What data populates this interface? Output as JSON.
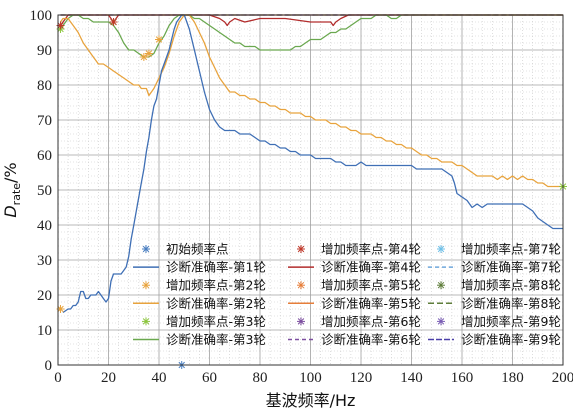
{
  "chart_data": {
    "type": "line",
    "title": "",
    "xlabel": "基波频率/Hz",
    "ylabel": {
      "main": "D",
      "sub": "rate",
      "unit": "/%"
    },
    "xlim": [
      0,
      200
    ],
    "ylim": [
      0,
      100
    ],
    "xticks": [
      "0",
      "20",
      "40",
      "60",
      "80",
      "100",
      "120",
      "140",
      "160",
      "180",
      "200"
    ],
    "yticks": [
      "0",
      "10",
      "20",
      "30",
      "40",
      "50",
      "60",
      "70",
      "80",
      "90",
      "100"
    ],
    "grid": true,
    "legend_position": "lower-right",
    "series": [
      {
        "name": "初始频率点",
        "kind": "marker",
        "color": "#4a7fc1",
        "x": [
          49
        ],
        "y": [
          0
        ]
      },
      {
        "name": "诊断准确率-第1轮",
        "kind": "line",
        "color": "#3f6fb5",
        "dash": "",
        "x": [
          2,
          4,
          5,
          6,
          7,
          8,
          9,
          10,
          11,
          12,
          13,
          14,
          15,
          16,
          17,
          18,
          19,
          20,
          21,
          22,
          23,
          24,
          25,
          26,
          27,
          28,
          29,
          30,
          31,
          32,
          33,
          34,
          35,
          36,
          37,
          38,
          39,
          40,
          41,
          42,
          43,
          44,
          45,
          46,
          47,
          48,
          49,
          50,
          52,
          54,
          56,
          58,
          60,
          62,
          64,
          66,
          68,
          70,
          72,
          74,
          76,
          78,
          80,
          82,
          84,
          86,
          88,
          90,
          92,
          94,
          96,
          98,
          100,
          102,
          104,
          106,
          108,
          110,
          112,
          114,
          116,
          118,
          120,
          122,
          124,
          126,
          128,
          130,
          132,
          134,
          136,
          138,
          140,
          142,
          144,
          146,
          148,
          150,
          152,
          154,
          156,
          157,
          158,
          160,
          162,
          164,
          166,
          168,
          170,
          172,
          174,
          176,
          178,
          180,
          182,
          184,
          186,
          188,
          190,
          192,
          194,
          196,
          198,
          200
        ],
        "y": [
          15,
          16,
          16,
          17,
          17,
          18,
          21,
          21,
          19,
          19,
          20,
          20,
          20,
          21,
          20,
          19,
          18,
          19,
          24,
          26,
          26,
          26,
          26,
          27,
          28,
          31,
          36,
          40,
          44,
          48,
          52,
          56,
          61,
          65,
          70,
          74,
          76,
          80,
          84,
          86,
          88,
          90,
          93,
          96,
          98,
          99,
          100,
          100,
          96,
          90,
          84,
          78,
          73,
          70,
          68,
          67,
          67,
          67,
          66,
          66,
          66,
          65,
          64,
          64,
          63,
          63,
          62,
          62,
          61,
          61,
          60,
          60,
          60,
          59,
          59,
          59,
          59,
          58,
          58,
          57,
          57,
          57,
          58,
          57,
          57,
          57,
          57,
          57,
          57,
          57,
          57,
          57,
          57,
          56,
          56,
          56,
          56,
          56,
          56,
          55,
          54,
          52,
          49,
          48,
          47,
          45,
          46,
          45,
          46,
          46,
          46,
          46,
          46,
          46,
          46,
          46,
          45,
          44,
          42,
          41,
          40,
          39,
          39,
          39
        ]
      },
      {
        "name": "增加频率点-第2轮",
        "kind": "marker",
        "color": "#e8a33d",
        "x": [
          1,
          34,
          36,
          40
        ],
        "y": [
          16,
          88,
          89,
          93
        ]
      },
      {
        "name": "诊断准确率-第2轮",
        "kind": "line",
        "color": "#e8a33d",
        "dash": "",
        "x": [
          1,
          2,
          3,
          4,
          5,
          6,
          8,
          10,
          12,
          14,
          15,
          16,
          17,
          18,
          20,
          22,
          24,
          26,
          28,
          30,
          32,
          33,
          34,
          35,
          36,
          38,
          40,
          42,
          44,
          46,
          48,
          50,
          52,
          54,
          56,
          58,
          60,
          62,
          64,
          66,
          68,
          70,
          72,
          74,
          76,
          78,
          80,
          82,
          84,
          86,
          88,
          90,
          92,
          94,
          96,
          98,
          100,
          102,
          104,
          106,
          108,
          110,
          112,
          114,
          116,
          118,
          120,
          122,
          124,
          126,
          128,
          130,
          132,
          134,
          136,
          138,
          140,
          142,
          144,
          146,
          148,
          150,
          152,
          154,
          156,
          158,
          160,
          162,
          164,
          166,
          168,
          170,
          172,
          174,
          176,
          178,
          180,
          182,
          184,
          186,
          188,
          190,
          192,
          194,
          196,
          198,
          200
        ],
        "y": [
          98,
          99,
          99,
          99,
          98,
          97,
          95,
          92,
          90,
          88,
          87,
          86,
          86,
          86,
          85,
          84,
          83,
          82,
          81,
          80,
          80,
          79,
          79,
          79,
          77,
          79,
          82,
          85,
          89,
          94,
          98,
          100,
          100,
          98,
          95,
          92,
          88,
          85,
          82,
          80,
          78,
          78,
          77,
          77,
          76,
          76,
          75,
          75,
          74,
          74,
          73,
          73,
          72,
          72,
          72,
          71,
          71,
          70,
          70,
          70,
          69,
          69,
          68,
          68,
          67,
          67,
          66,
          66,
          66,
          65,
          65,
          64,
          64,
          63,
          63,
          62,
          62,
          61,
          60,
          60,
          59,
          59,
          58,
          58,
          58,
          57,
          57,
          56,
          55,
          54,
          54,
          54,
          54,
          53,
          54,
          53,
          54,
          53,
          54,
          53,
          53,
          52,
          52,
          51,
          51,
          51,
          51
        ]
      },
      {
        "name": "增加频率点-第3轮",
        "kind": "marker",
        "color": "#8dc63f",
        "x": [
          1,
          22,
          200
        ],
        "y": [
          96,
          98,
          51
        ]
      },
      {
        "name": "诊断准确率-第3轮",
        "kind": "line",
        "color": "#6aa84f",
        "dash": "",
        "x": [
          1,
          2,
          3,
          4,
          6,
          8,
          10,
          12,
          14,
          16,
          18,
          20,
          22,
          24,
          26,
          28,
          30,
          32,
          34,
          36,
          38,
          40,
          42,
          44,
          46,
          48,
          50,
          52,
          54,
          56,
          58,
          60,
          62,
          64,
          66,
          68,
          70,
          72,
          74,
          76,
          78,
          80,
          82,
          84,
          86,
          88,
          90,
          92,
          94,
          96,
          98,
          100,
          102,
          104,
          106,
          108,
          110,
          112,
          114,
          116,
          118,
          120,
          122,
          124,
          126,
          128,
          130,
          132,
          134,
          136,
          138,
          140,
          142,
          146,
          150,
          160,
          170,
          180,
          190,
          200
        ],
        "y": [
          96,
          97,
          98,
          99,
          100,
          100,
          99,
          99,
          98,
          98,
          98,
          98,
          97,
          95,
          92,
          90,
          90,
          89,
          88,
          88,
          89,
          92,
          94,
          97,
          99,
          100,
          100,
          100,
          99,
          99,
          98,
          97,
          96,
          95,
          94,
          93,
          92,
          92,
          91,
          91,
          91,
          90,
          90,
          90,
          90,
          90,
          90,
          90,
          91,
          91,
          92,
          93,
          93,
          93,
          94,
          95,
          95,
          96,
          96,
          97,
          98,
          99,
          99,
          99,
          100,
          100,
          100,
          99,
          99,
          100,
          100,
          100,
          100,
          100,
          100,
          100,
          100,
          100,
          100,
          100
        ]
      },
      {
        "name": "增加频率点-第4轮",
        "kind": "marker",
        "color": "#c0392b",
        "x": [
          1,
          22
        ],
        "y": [
          97,
          98
        ]
      },
      {
        "name": "诊断准确率-第4轮",
        "kind": "line",
        "color": "#b22c2c",
        "dash": "",
        "x": [
          1,
          2,
          3,
          4,
          6,
          10,
          20,
          21,
          22,
          23,
          24,
          30,
          40,
          50,
          60,
          64,
          66,
          67,
          68,
          70,
          74,
          80,
          90,
          100,
          105,
          108,
          109,
          110,
          112,
          115,
          120,
          140,
          160,
          180,
          200
        ],
        "y": [
          97,
          98,
          99,
          100,
          100,
          100,
          100,
          99,
          98,
          99,
          100,
          100,
          100,
          100,
          100,
          99,
          98,
          97,
          98,
          99,
          98,
          99,
          99,
          98,
          98,
          98,
          97,
          98,
          99,
          100,
          100,
          100,
          100,
          100,
          100
        ]
      },
      {
        "name": "增加频率点-第5轮",
        "kind": "marker",
        "color": "#e67e3a",
        "x": [],
        "y": []
      },
      {
        "name": "诊断准确率-第5轮",
        "kind": "line",
        "color": "#e67e3a",
        "dash": "",
        "x": [
          1,
          200
        ],
        "y": [
          100,
          100
        ]
      },
      {
        "name": "增加频率点-第6轮",
        "kind": "marker",
        "color": "#7d4fa0",
        "x": [],
        "y": []
      },
      {
        "name": "诊断准确率-第6轮",
        "kind": "line",
        "color": "#7d4fa0",
        "dash": "4,3",
        "x": [
          1,
          200
        ],
        "y": [
          100,
          100
        ]
      },
      {
        "name": "增加频率点-第7轮",
        "kind": "marker",
        "color": "#6fc0e8",
        "x": [],
        "y": []
      },
      {
        "name": "诊断准确率-第7轮",
        "kind": "line",
        "color": "#6fa8dc",
        "dash": "4,3",
        "x": [
          1,
          200
        ],
        "y": [
          100,
          100
        ]
      },
      {
        "name": "增加频率点-第8轮",
        "kind": "marker",
        "color": "#5e7d3a",
        "x": [],
        "y": []
      },
      {
        "name": "诊断准确率-第8轮",
        "kind": "line",
        "color": "#5e7d3a",
        "dash": "6,3",
        "x": [
          1,
          200
        ],
        "y": [
          100,
          100
        ]
      },
      {
        "name": "增加频率点-第9轮",
        "kind": "marker",
        "color": "#7b5fb5",
        "x": [],
        "y": []
      },
      {
        "name": "诊断准确率-第9轮",
        "kind": "line",
        "color": "#4a3fa8",
        "dash": "6,2",
        "x": [
          1,
          200
        ],
        "y": [
          100,
          100
        ]
      }
    ]
  }
}
